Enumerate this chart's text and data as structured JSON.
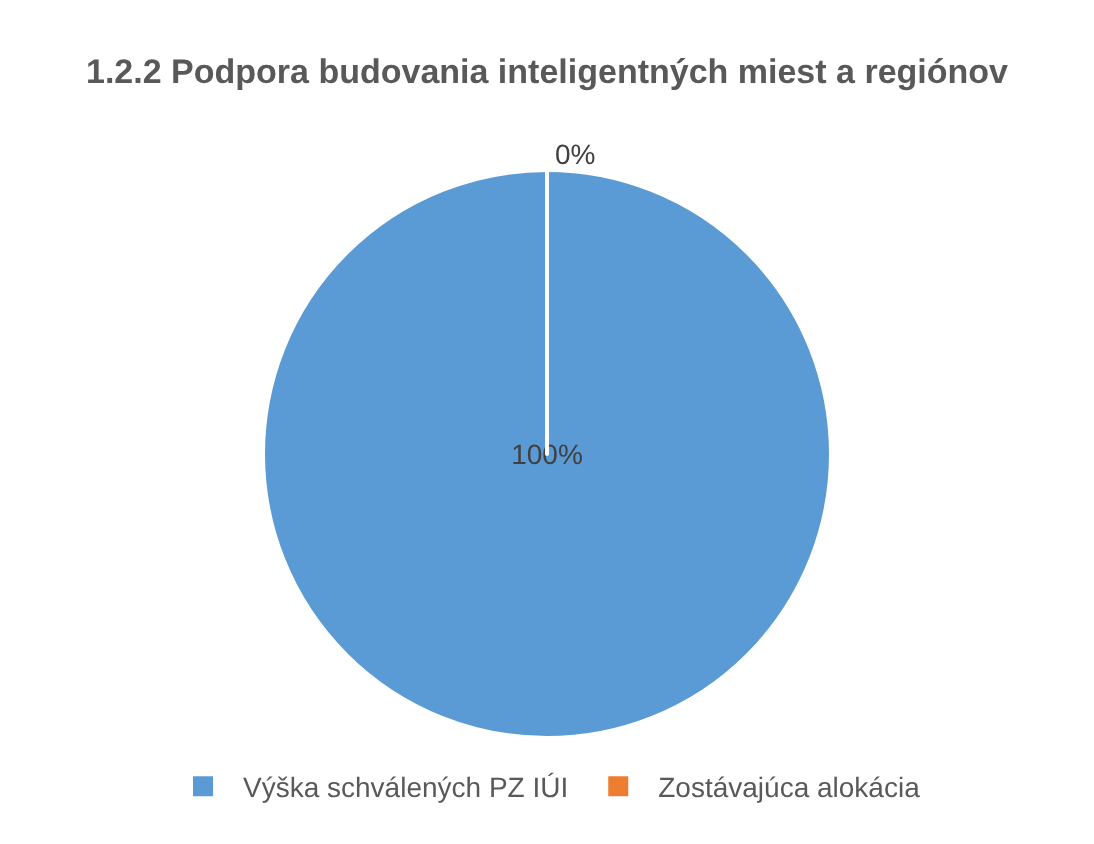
{
  "chart_data": {
    "type": "pie",
    "title": "1.2.2 Podpora budovania inteligentných miest a regiónov",
    "categories": [
      "Výška schválených PZ IÚI",
      "Zostávajúca alokácia"
    ],
    "values": [
      100,
      0
    ],
    "colors": [
      "#5b9bd5",
      "#ed7d31"
    ],
    "value_labels": [
      "100%",
      "0%"
    ],
    "legend": "bottom"
  }
}
